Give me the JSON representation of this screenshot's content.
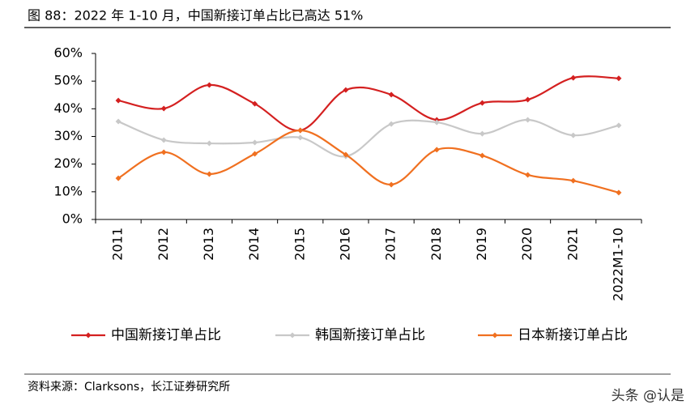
{
  "chart_data": {
    "type": "line",
    "title": "图 88：2022 年 1-10 月，中国新接订单占比已高达 51%",
    "source": "资料来源：Clarksons，长江证券研究所",
    "watermark": "头条 @认是",
    "categories": [
      "2011",
      "2012",
      "2013",
      "2014",
      "2015",
      "2016",
      "2017",
      "2018",
      "2019",
      "2020",
      "2021",
      "2022M1-10"
    ],
    "series": [
      {
        "name": "中国新接订单占比",
        "color": "#d42020",
        "values": [
          43.0,
          40.1,
          48.6,
          41.8,
          32.2,
          46.8,
          45.1,
          36.0,
          42.1,
          43.3,
          51.2,
          51
        ]
      },
      {
        "name": "韩国新接订单占比",
        "color": "#c8c8c8",
        "values": [
          35.4,
          28.7,
          27.5,
          27.8,
          29.6,
          22.8,
          34.5,
          35.1,
          31.0,
          36.0,
          30.4,
          34.0
        ]
      },
      {
        "name": "日本新接订单占比",
        "color": "#f07020",
        "values": [
          14.9,
          24.3,
          16.4,
          23.7,
          32.2,
          23.4,
          12.6,
          25.2,
          23.1,
          16.1,
          14.0,
          9.7
        ]
      }
    ],
    "ylim": [
      0,
      60
    ],
    "yticks": [
      {
        "value": 0,
        "label": "0%"
      },
      {
        "value": 10,
        "label": "10%"
      },
      {
        "value": 20,
        "label": "20%"
      },
      {
        "value": 30,
        "label": "30%"
      },
      {
        "value": 40,
        "label": "40%"
      },
      {
        "value": 50,
        "label": "50%"
      },
      {
        "value": 60,
        "label": "60%"
      }
    ],
    "smooth": true
  }
}
